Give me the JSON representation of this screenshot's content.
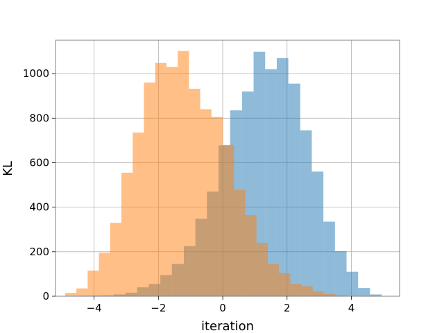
{
  "chart_data": {
    "type": "histogram",
    "xlabel": "iteration",
    "ylabel": "KL",
    "xlim": [
      -5.2,
      5.5
    ],
    "ylim": [
      0,
      1150
    ],
    "xticks": [
      -4,
      -2,
      0,
      2,
      4
    ],
    "xtick_labels": [
      "−4",
      "−2",
      "0",
      "2",
      "4"
    ],
    "yticks": [
      0,
      200,
      400,
      600,
      800,
      1000
    ],
    "ytick_labels": [
      "0",
      "200",
      "400",
      "600",
      "800",
      "1000"
    ],
    "grid": true,
    "overlap_color": "#c69c77",
    "series": [
      {
        "color": "#1f77b4",
        "opacity": 0.5,
        "bins": [
          [
            -4.47,
            -4.11,
            2
          ],
          [
            -4.11,
            -3.75,
            3
          ],
          [
            -3.75,
            -3.39,
            4
          ],
          [
            -3.39,
            -3.02,
            8
          ],
          [
            -3.02,
            -2.66,
            16
          ],
          [
            -2.66,
            -2.3,
            40
          ],
          [
            -2.3,
            -1.94,
            55
          ],
          [
            -1.94,
            -1.58,
            95
          ],
          [
            -1.58,
            -1.21,
            145
          ],
          [
            -1.21,
            -0.85,
            225
          ],
          [
            -0.85,
            -0.49,
            348
          ],
          [
            -0.49,
            -0.13,
            470
          ],
          [
            -0.13,
            0.23,
            678
          ],
          [
            0.23,
            0.6,
            835
          ],
          [
            0.6,
            0.96,
            920
          ],
          [
            0.96,
            1.32,
            1098
          ],
          [
            1.32,
            1.68,
            1020
          ],
          [
            1.68,
            2.04,
            1070
          ],
          [
            2.04,
            2.41,
            955
          ],
          [
            2.41,
            2.77,
            745
          ],
          [
            2.77,
            3.13,
            560
          ],
          [
            3.13,
            3.49,
            335
          ],
          [
            3.49,
            3.85,
            203
          ],
          [
            3.85,
            4.21,
            110
          ],
          [
            4.21,
            4.58,
            37
          ],
          [
            4.58,
            4.94,
            8
          ]
        ]
      },
      {
        "color": "#ff7f0e",
        "opacity": 0.5,
        "bins": [
          [
            -4.9,
            -4.55,
            15
          ],
          [
            -4.55,
            -4.2,
            35
          ],
          [
            -4.2,
            -3.85,
            115
          ],
          [
            -3.85,
            -3.5,
            195
          ],
          [
            -3.5,
            -3.15,
            330
          ],
          [
            -3.15,
            -2.8,
            555
          ],
          [
            -2.8,
            -2.45,
            735
          ],
          [
            -2.45,
            -2.1,
            960
          ],
          [
            -2.1,
            -1.75,
            1048
          ],
          [
            -1.75,
            -1.4,
            1030
          ],
          [
            -1.4,
            -1.05,
            1102
          ],
          [
            -1.05,
            -0.7,
            932
          ],
          [
            -0.7,
            -0.35,
            840
          ],
          [
            -0.35,
            0.0,
            805
          ],
          [
            0.0,
            0.35,
            680
          ],
          [
            0.35,
            0.7,
            478
          ],
          [
            0.7,
            1.05,
            365
          ],
          [
            1.05,
            1.4,
            240
          ],
          [
            1.4,
            1.75,
            145
          ],
          [
            1.75,
            2.1,
            103
          ],
          [
            2.1,
            2.45,
            56
          ],
          [
            2.45,
            2.8,
            45
          ],
          [
            2.8,
            3.15,
            22
          ],
          [
            3.15,
            3.5,
            10
          ],
          [
            3.5,
            3.85,
            4
          ]
        ]
      }
    ]
  }
}
